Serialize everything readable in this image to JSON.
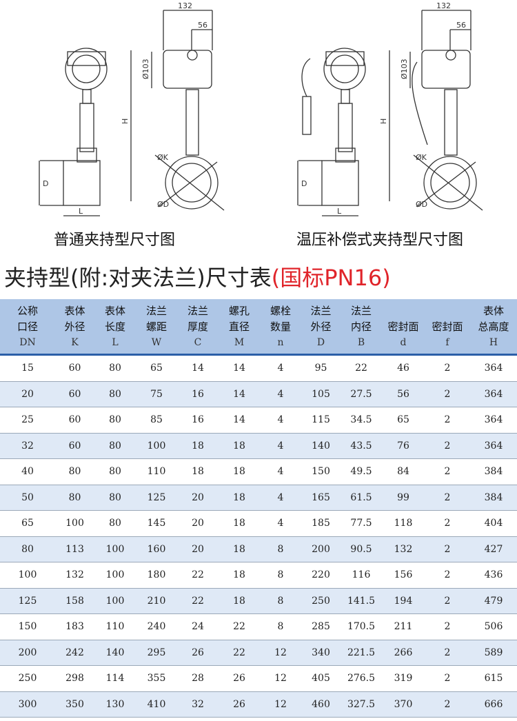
{
  "drawings": [
    {
      "caption": "普通夹持型尺寸图",
      "dims": {
        "width": "132",
        "offset": "56",
        "dia": "Ø103",
        "height": "H",
        "pipe_d": "D",
        "length": "L",
        "k": "ØK",
        "d": "ØD"
      }
    },
    {
      "caption": "温压补偿式夹持型尺寸图",
      "dims": {
        "width": "132",
        "offset": "56",
        "dia": "Ø103",
        "height": "H",
        "pipe_d": "D",
        "length": "L",
        "k": "ØK",
        "d": "ØD"
      }
    }
  ],
  "heading": {
    "main": "夹持型(附:对夹法兰)尺寸表",
    "standard": "(国标PN16)"
  },
  "colors": {
    "header_bg": "#aec6e6",
    "stripe": "#dfe9f6",
    "accent": "#e0242a",
    "rule": "#2b5fa8"
  },
  "table": {
    "columns": [
      {
        "l1": "公称",
        "l2": "口径",
        "sym": "DN"
      },
      {
        "l1": "表体",
        "l2": "外径",
        "sym": "K"
      },
      {
        "l1": "表体",
        "l2": "长度",
        "sym": "L"
      },
      {
        "l1": "法兰",
        "l2": "螺距",
        "sym": "W"
      },
      {
        "l1": "法兰",
        "l2": "厚度",
        "sym": "C"
      },
      {
        "l1": "螺孔",
        "l2": "直径",
        "sym": "M"
      },
      {
        "l1": "螺栓",
        "l2": "数量",
        "sym": "n"
      },
      {
        "l1": "法兰",
        "l2": "外径",
        "sym": "D"
      },
      {
        "l1": "法兰",
        "l2": "内径",
        "sym": "B"
      },
      {
        "l1": "",
        "l2": "密封面",
        "sym": "d"
      },
      {
        "l1": "",
        "l2": "密封面",
        "sym": "f"
      },
      {
        "l1": "表体",
        "l2": "总高度",
        "sym": "H"
      }
    ],
    "rows": [
      [
        "15",
        "60",
        "80",
        "65",
        "14",
        "14",
        "4",
        "95",
        "22",
        "46",
        "2",
        "364"
      ],
      [
        "20",
        "60",
        "80",
        "75",
        "16",
        "14",
        "4",
        "105",
        "27.5",
        "56",
        "2",
        "364"
      ],
      [
        "25",
        "60",
        "80",
        "85",
        "16",
        "14",
        "4",
        "115",
        "34.5",
        "65",
        "2",
        "364"
      ],
      [
        "32",
        "60",
        "80",
        "100",
        "18",
        "18",
        "4",
        "140",
        "43.5",
        "76",
        "2",
        "364"
      ],
      [
        "40",
        "80",
        "80",
        "110",
        "18",
        "18",
        "4",
        "150",
        "49.5",
        "84",
        "2",
        "384"
      ],
      [
        "50",
        "80",
        "80",
        "125",
        "20",
        "18",
        "4",
        "165",
        "61.5",
        "99",
        "2",
        "384"
      ],
      [
        "65",
        "100",
        "80",
        "145",
        "20",
        "18",
        "4",
        "185",
        "77.5",
        "118",
        "2",
        "404"
      ],
      [
        "80",
        "113",
        "100",
        "160",
        "20",
        "18",
        "8",
        "200",
        "90.5",
        "132",
        "2",
        "427"
      ],
      [
        "100",
        "132",
        "100",
        "180",
        "22",
        "18",
        "8",
        "220",
        "116",
        "156",
        "2",
        "436"
      ],
      [
        "125",
        "158",
        "100",
        "210",
        "22",
        "18",
        "8",
        "250",
        "141.5",
        "194",
        "2",
        "479"
      ],
      [
        "150",
        "183",
        "110",
        "240",
        "24",
        "22",
        "8",
        "285",
        "170.5",
        "211",
        "2",
        "506"
      ],
      [
        "200",
        "242",
        "140",
        "295",
        "26",
        "22",
        "12",
        "340",
        "221.5",
        "266",
        "2",
        "589"
      ],
      [
        "250",
        "298",
        "114",
        "355",
        "28",
        "26",
        "12",
        "405",
        "276.5",
        "319",
        "2",
        "615"
      ],
      [
        "300",
        "350",
        "130",
        "410",
        "32",
        "26",
        "12",
        "460",
        "327.5",
        "370",
        "2",
        "666"
      ]
    ]
  }
}
